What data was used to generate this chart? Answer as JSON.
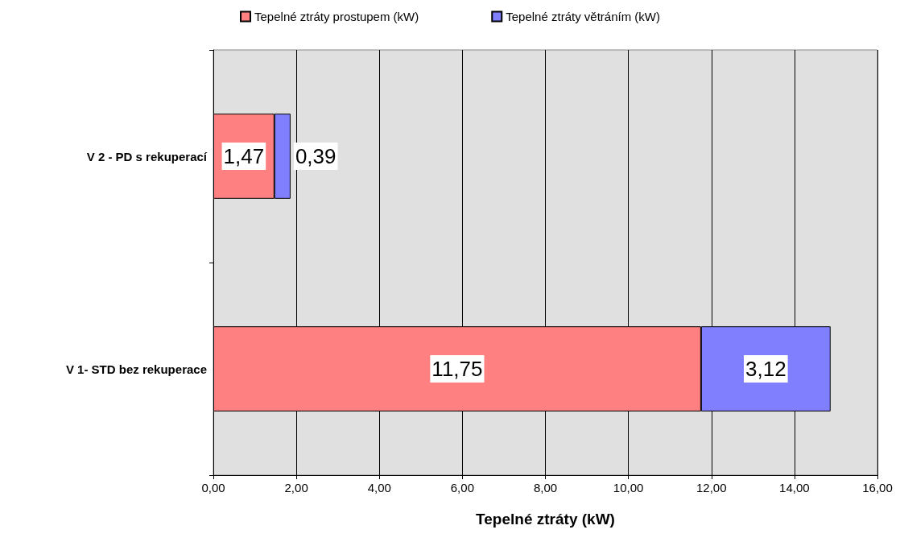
{
  "chart_data": {
    "type": "bar",
    "orientation": "horizontal",
    "stacked": true,
    "xlabel": "Tepelné ztráty (kW)",
    "categories": [
      "V 2 - PD s rekuperací",
      "V 1- STD bez rekuperace"
    ],
    "series": [
      {
        "name": "Tepelné ztráty prostupem (kW)",
        "color": "#ff8080",
        "values": [
          1.47,
          11.75
        ],
        "value_labels": [
          "1,47",
          "11,75"
        ]
      },
      {
        "name": "Tepelné ztráty větráním (kW)",
        "color": "#8080ff",
        "values": [
          0.39,
          3.12
        ],
        "value_labels": [
          "0,39",
          "3,12"
        ]
      }
    ],
    "xlim": [
      0,
      16
    ],
    "xticks": [
      {
        "value": 0,
        "label": "0,00"
      },
      {
        "value": 2,
        "label": "2,00"
      },
      {
        "value": 4,
        "label": "4,00"
      },
      {
        "value": 6,
        "label": "6,00"
      },
      {
        "value": 8,
        "label": "8,00"
      },
      {
        "value": 10,
        "label": "10,00"
      },
      {
        "value": 12,
        "label": "12,00"
      },
      {
        "value": 14,
        "label": "14,00"
      },
      {
        "value": 16,
        "label": "16,00"
      }
    ],
    "grid": "x",
    "legend": "top"
  }
}
